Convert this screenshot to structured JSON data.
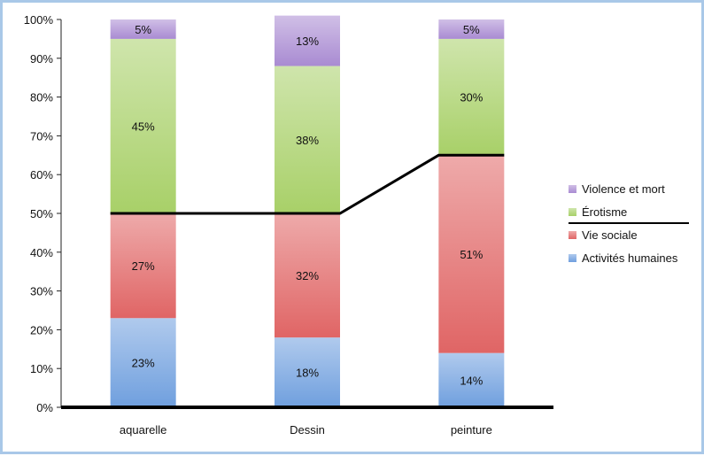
{
  "chart_data": {
    "type": "bar",
    "stacked": true,
    "categories": [
      "aquarelle",
      "Dessin",
      "peinture"
    ],
    "series": [
      {
        "name": "Activités humaines",
        "values": [
          23,
          18,
          14
        ],
        "color": "#6f9fde"
      },
      {
        "name": "Vie sociale",
        "values": [
          27,
          32,
          51
        ],
        "color": "#e06565"
      },
      {
        "name": "Érotisme",
        "values": [
          45,
          38,
          30
        ],
        "color": "#a8d068"
      },
      {
        "name": "Violence et mort",
        "values": [
          5,
          13,
          5
        ],
        "color": "#a98bd2"
      }
    ],
    "data_labels": [
      [
        "23%",
        "27%",
        "45%",
        "5%"
      ],
      [
        "18%",
        "32%",
        "38%",
        "13%"
      ],
      [
        "14%",
        "51%",
        "30%",
        "5%"
      ]
    ],
    "y_ticks": [
      "0%",
      "10%",
      "20%",
      "30%",
      "40%",
      "50%",
      "60%",
      "70%",
      "80%",
      "90%",
      "100%"
    ],
    "ylim": [
      0,
      100
    ],
    "grid": false,
    "legend_position": "right",
    "annotation_line": {
      "description": "black line at 50%, 50%, 65%",
      "values": [
        50,
        50,
        65
      ]
    },
    "title": "",
    "xlabel": "",
    "ylabel": ""
  }
}
